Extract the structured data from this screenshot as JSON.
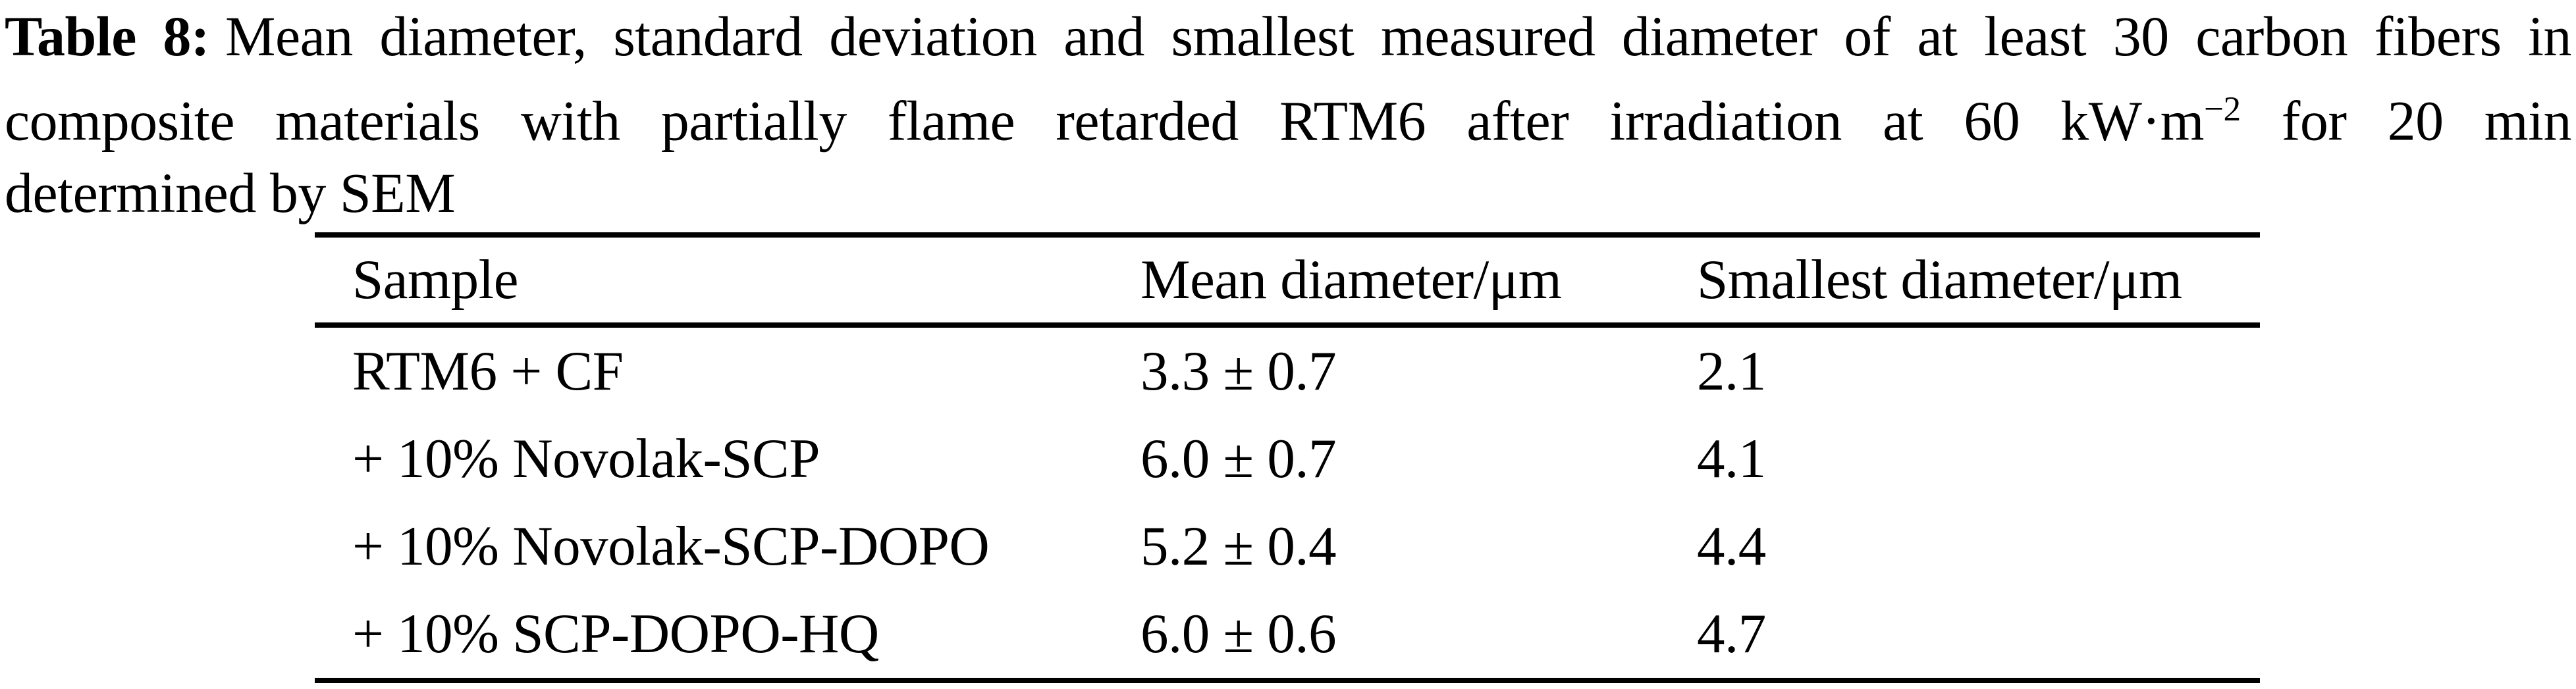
{
  "page": {
    "background_color": "#ffffff",
    "text_color": "#000000"
  },
  "caption": {
    "label": "Table 8:",
    "line1": "Mean diameter, standard deviation and smallest measured diameter of at least 30 carbon fibers in",
    "line2_pre": "composite materials with partially flame retarded RTM6 after irradiation at 60 kW·m",
    "line2_sup": "−2",
    "line2_post": "for 20 min",
    "line3": "determined by SEM"
  },
  "table": {
    "columns": [
      "Sample",
      "Mean diameter/μm",
      "Smallest diameter/μm"
    ],
    "rows": [
      {
        "sample": "RTM6 + CF",
        "mean": "3.3 ± 0.7",
        "smallest": "2.1"
      },
      {
        "sample": "+ 10% Novolak-SCP",
        "mean": "6.0 ± 0.7",
        "smallest": "4.1"
      },
      {
        "sample": "+ 10% Novolak-SCP-DOPO",
        "mean": "5.2 ± 0.4",
        "smallest": "4.4"
      },
      {
        "sample": "+ 10% SCP-DOPO-HQ",
        "mean": "6.0 ± 0.6",
        "smallest": "4.7"
      }
    ]
  }
}
